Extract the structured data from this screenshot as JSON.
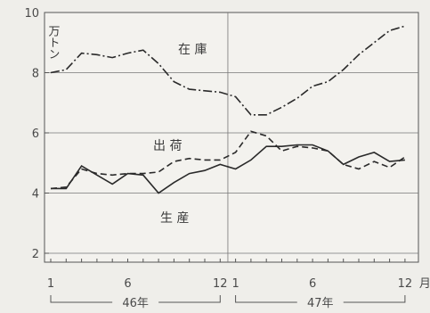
{
  "chart_data": {
    "type": "line",
    "y_unit_label": "万トン",
    "ylim": [
      2,
      10
    ],
    "y_ticks": [
      2,
      4,
      6,
      8,
      10
    ],
    "grid": true,
    "x_month_ticks": [
      "1",
      "6",
      "12",
      "1",
      "6",
      "12"
    ],
    "x_unit_label": "月",
    "year_labels": [
      "46年",
      "47年"
    ],
    "x": [
      1,
      2,
      3,
      4,
      5,
      6,
      7,
      8,
      9,
      10,
      11,
      12,
      13,
      14,
      15,
      16,
      17,
      18,
      19,
      20,
      21,
      22,
      23,
      24
    ],
    "series": [
      {
        "name": "在庫",
        "style": "dashdot",
        "values": [
          8.0,
          8.1,
          8.65,
          8.6,
          8.5,
          8.65,
          8.75,
          8.3,
          7.7,
          7.45,
          7.4,
          7.35,
          7.2,
          6.6,
          6.6,
          6.85,
          7.15,
          7.55,
          7.7,
          8.1,
          8.6,
          9.0,
          9.4,
          9.55
        ]
      },
      {
        "name": "出荷",
        "style": "dashed",
        "values": [
          4.15,
          4.2,
          4.8,
          4.65,
          4.6,
          4.65,
          4.65,
          4.7,
          5.05,
          5.15,
          5.1,
          5.1,
          5.35,
          6.05,
          5.9,
          5.4,
          5.55,
          5.5,
          5.4,
          4.95,
          4.8,
          5.05,
          4.85,
          5.2
        ]
      },
      {
        "name": "生産",
        "style": "solid",
        "values": [
          4.15,
          4.15,
          4.9,
          4.6,
          4.3,
          4.65,
          4.6,
          4.0,
          4.35,
          4.65,
          4.75,
          4.95,
          4.8,
          5.1,
          5.55,
          5.55,
          5.6,
          5.6,
          5.4,
          4.95,
          5.2,
          5.35,
          5.05,
          5.1
        ]
      }
    ]
  }
}
